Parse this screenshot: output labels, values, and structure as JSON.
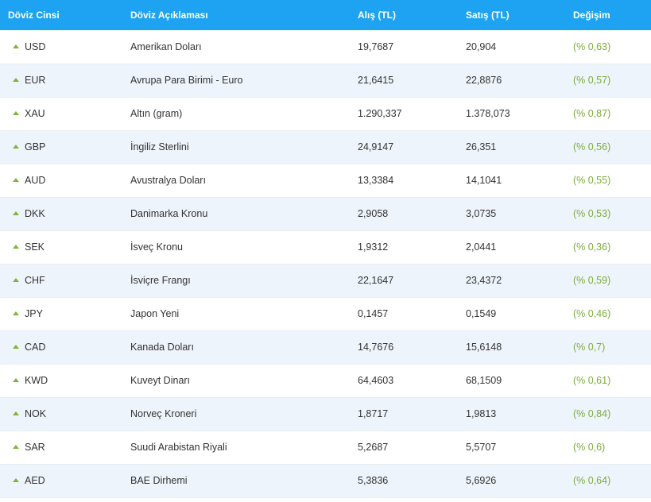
{
  "header": {
    "code": "Döviz Cinsi",
    "description": "Döviz Açıklaması",
    "buy": "Alış (TL)",
    "sell": "Satış (TL)",
    "change": "Değişim"
  },
  "colors": {
    "header_bg": "#1da3f2",
    "up_arrow": "#7fb43d",
    "change_text": "#7cac3c",
    "stripe": "#eef4fb"
  },
  "rows": [
    {
      "code": "USD",
      "description": "Amerikan Doları",
      "buy": "19,7687",
      "sell": "20,904",
      "change": "(% 0,63)",
      "trend": "up-arrow-icon"
    },
    {
      "code": "EUR",
      "description": "Avrupa Para Birimi - Euro",
      "buy": "21,6415",
      "sell": "22,8876",
      "change": "(% 0,57)",
      "trend": "up-arrow-icon"
    },
    {
      "code": "XAU",
      "description": "Altın (gram)",
      "buy": "1.290,337",
      "sell": "1.378,073",
      "change": "(% 0,87)",
      "trend": "up-arrow-icon"
    },
    {
      "code": "GBP",
      "description": "İngiliz Sterlini",
      "buy": "24,9147",
      "sell": "26,351",
      "change": "(% 0,56)",
      "trend": "up-arrow-icon"
    },
    {
      "code": "AUD",
      "description": "Avustralya Doları",
      "buy": "13,3384",
      "sell": "14,1041",
      "change": "(% 0,55)",
      "trend": "up-arrow-icon"
    },
    {
      "code": "DKK",
      "description": "Danimarka Kronu",
      "buy": "2,9058",
      "sell": "3,0735",
      "change": "(% 0,53)",
      "trend": "up-arrow-icon"
    },
    {
      "code": "SEK",
      "description": "İsveç Kronu",
      "buy": "1,9312",
      "sell": "2,0441",
      "change": "(% 0,36)",
      "trend": "up-arrow-icon"
    },
    {
      "code": "CHF",
      "description": "İsviçre Frangı",
      "buy": "22,1647",
      "sell": "23,4372",
      "change": "(% 0,59)",
      "trend": "up-arrow-icon"
    },
    {
      "code": "JPY",
      "description": "Japon Yeni",
      "buy": "0,1457",
      "sell": "0,1549",
      "change": "(% 0,46)",
      "trend": "up-arrow-icon"
    },
    {
      "code": "CAD",
      "description": "Kanada Doları",
      "buy": "14,7676",
      "sell": "15,6148",
      "change": "(% 0,7)",
      "trend": "up-arrow-icon"
    },
    {
      "code": "KWD",
      "description": "Kuveyt Dinarı",
      "buy": "64,4603",
      "sell": "68,1509",
      "change": "(% 0,61)",
      "trend": "up-arrow-icon"
    },
    {
      "code": "NOK",
      "description": "Norveç Kroneri",
      "buy": "1,8717",
      "sell": "1,9813",
      "change": "(% 0,84)",
      "trend": "up-arrow-icon"
    },
    {
      "code": "SAR",
      "description": "Suudi Arabistan Riyali",
      "buy": "5,2687",
      "sell": "5,5707",
      "change": "(% 0,6)",
      "trend": "up-arrow-icon"
    },
    {
      "code": "AED",
      "description": "BAE Dirhemi",
      "buy": "5,3836",
      "sell": "5,6926",
      "change": "(% 0,64)",
      "trend": "up-arrow-icon"
    }
  ]
}
